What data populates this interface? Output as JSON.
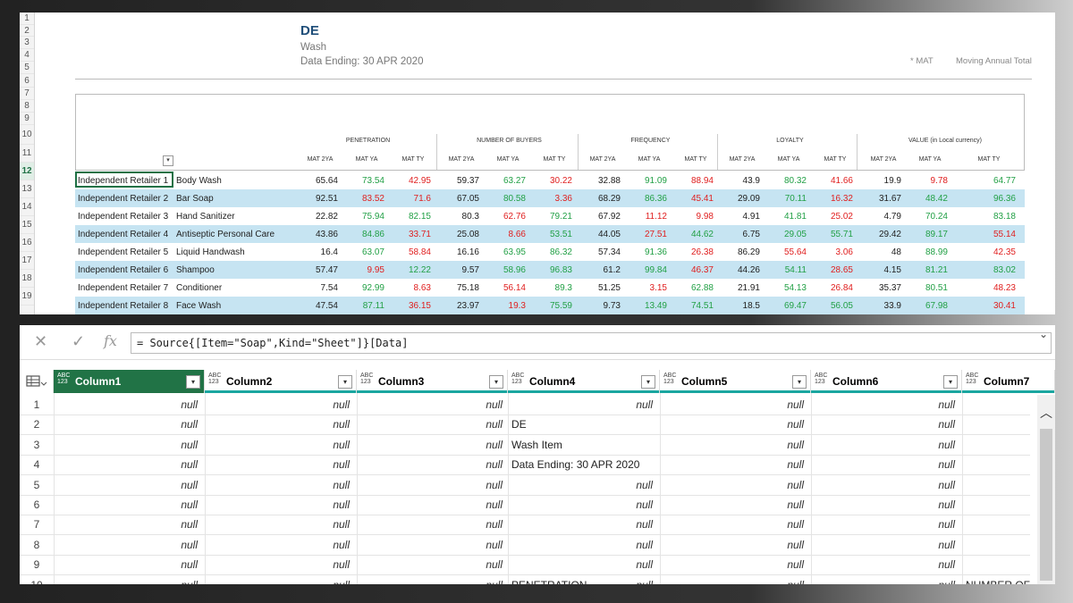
{
  "excel": {
    "title": "DE",
    "subtitle": "Wash",
    "data_ending": "Data Ending: 30 APR 2020",
    "mat_note": "* MAT",
    "mat_note_full": "Moving Annual Total",
    "row_numbers": [
      "1",
      "2",
      "3",
      "4",
      "5",
      "6",
      "7",
      "8",
      "9",
      "10",
      "11",
      "12",
      "13",
      "14",
      "15",
      "16",
      "17",
      "18",
      "19"
    ],
    "metrics": [
      "PENETRATION",
      "NUMBER OF BUYERS",
      "FREQUENCY",
      "LOYALTY",
      "VALUE (in Local currency)"
    ],
    "sub_headers": [
      "MAT 2YA",
      "MAT YA",
      "MAT TY"
    ],
    "rows": [
      {
        "retailer": "Independent Retailer 1",
        "product": "Body Wash",
        "values": [
          "65.64",
          "73.54",
          "42.95",
          "59.37",
          "63.27",
          "30.22",
          "32.88",
          "91.09",
          "88.94",
          "43.9",
          "80.32",
          "41.66",
          "19.9",
          "9.78",
          "64.77"
        ],
        "colors": [
          "k",
          "g",
          "r",
          "k",
          "g",
          "r",
          "k",
          "g",
          "r",
          "k",
          "g",
          "r",
          "k",
          "r",
          "g"
        ]
      },
      {
        "retailer": "Independent Retailer 2",
        "product": "Bar Soap",
        "values": [
          "92.51",
          "83.52",
          "71.6",
          "67.05",
          "80.58",
          "3.36",
          "68.29",
          "86.36",
          "45.41",
          "29.09",
          "70.11",
          "16.32",
          "31.67",
          "48.42",
          "96.36"
        ],
        "colors": [
          "k",
          "r",
          "r",
          "k",
          "g",
          "r",
          "k",
          "g",
          "r",
          "k",
          "g",
          "r",
          "k",
          "g",
          "g"
        ]
      },
      {
        "retailer": "Independent Retailer 3",
        "product": "Hand Sanitizer",
        "values": [
          "22.82",
          "75.94",
          "82.15",
          "80.3",
          "62.76",
          "79.21",
          "67.92",
          "11.12",
          "9.98",
          "4.91",
          "41.81",
          "25.02",
          "4.79",
          "70.24",
          "83.18"
        ],
        "colors": [
          "k",
          "g",
          "g",
          "k",
          "r",
          "g",
          "k",
          "r",
          "r",
          "k",
          "g",
          "r",
          "k",
          "g",
          "g"
        ]
      },
      {
        "retailer": "Independent Retailer 4",
        "product": "Antiseptic Personal Care",
        "values": [
          "43.86",
          "84.86",
          "33.71",
          "25.08",
          "8.66",
          "53.51",
          "44.05",
          "27.51",
          "44.62",
          "6.75",
          "29.05",
          "55.71",
          "29.42",
          "89.17",
          "55.14"
        ],
        "colors": [
          "k",
          "g",
          "r",
          "k",
          "r",
          "g",
          "k",
          "r",
          "g",
          "k",
          "g",
          "g",
          "k",
          "g",
          "r"
        ]
      },
      {
        "retailer": "Independent Retailer 5",
        "product": "Liquid Handwash",
        "values": [
          "16.4",
          "63.07",
          "58.84",
          "16.16",
          "63.95",
          "86.32",
          "57.34",
          "91.36",
          "26.38",
          "86.29",
          "55.64",
          "3.06",
          "48",
          "88.99",
          "42.35"
        ],
        "colors": [
          "k",
          "g",
          "r",
          "k",
          "g",
          "g",
          "k",
          "g",
          "r",
          "k",
          "r",
          "r",
          "k",
          "g",
          "r"
        ]
      },
      {
        "retailer": "Independent Retailer 6",
        "product": "Shampoo",
        "values": [
          "57.47",
          "9.95",
          "12.22",
          "9.57",
          "58.96",
          "96.83",
          "61.2",
          "99.84",
          "46.37",
          "44.26",
          "54.11",
          "28.65",
          "4.15",
          "81.21",
          "83.02"
        ],
        "colors": [
          "k",
          "r",
          "g",
          "k",
          "g",
          "g",
          "k",
          "g",
          "r",
          "k",
          "g",
          "r",
          "k",
          "g",
          "g"
        ]
      },
      {
        "retailer": "Independent Retailer 7",
        "product": "Conditioner",
        "values": [
          "7.54",
          "92.99",
          "8.63",
          "75.18",
          "56.14",
          "89.3",
          "51.25",
          "3.15",
          "62.88",
          "21.91",
          "54.13",
          "26.84",
          "35.37",
          "80.51",
          "48.23"
        ],
        "colors": [
          "k",
          "g",
          "r",
          "k",
          "r",
          "g",
          "k",
          "r",
          "g",
          "k",
          "g",
          "r",
          "k",
          "g",
          "r"
        ]
      },
      {
        "retailer": "Independent Retailer 8",
        "product": "Face Wash",
        "values": [
          "47.54",
          "87.11",
          "36.15",
          "23.97",
          "19.3",
          "75.59",
          "9.73",
          "13.49",
          "74.51",
          "18.5",
          "69.47",
          "56.05",
          "33.9",
          "67.98",
          "30.41"
        ],
        "colors": [
          "k",
          "g",
          "r",
          "k",
          "r",
          "g",
          "k",
          "g",
          "g",
          "k",
          "g",
          "g",
          "k",
          "g",
          "r"
        ]
      }
    ]
  },
  "query": {
    "formula": "= Source{[Item=\"Soap\",Kind=\"Sheet\"]}[Data]",
    "fx_label": "fx",
    "type_label": "ABC\n123",
    "columns": [
      "Column1",
      "Column2",
      "Column3",
      "Column4",
      "Column5",
      "Column6",
      "Column7"
    ],
    "null_text": "null",
    "rows": [
      {
        "idx": "1",
        "cells": [
          "null",
          "null",
          "null",
          "",
          "null",
          "null",
          "null",
          ""
        ]
      },
      {
        "idx": "2",
        "cells": [
          "null",
          "null",
          "null",
          "DE",
          "",
          "null",
          "null",
          ""
        ]
      },
      {
        "idx": "3",
        "cells": [
          "null",
          "null",
          "null",
          "Wash Item",
          "",
          "null",
          "null",
          ""
        ]
      },
      {
        "idx": "4",
        "cells": [
          "null",
          "null",
          "null",
          "Data Ending: 30 APR 2020",
          "",
          "null",
          "null",
          ""
        ]
      },
      {
        "idx": "5",
        "cells": [
          "null",
          "null",
          "null",
          "",
          "null",
          "null",
          "null",
          ""
        ]
      },
      {
        "idx": "6",
        "cells": [
          "null",
          "null",
          "null",
          "",
          "null",
          "null",
          "null",
          ""
        ]
      },
      {
        "idx": "7",
        "cells": [
          "null",
          "null",
          "null",
          "",
          "null",
          "null",
          "null",
          ""
        ]
      },
      {
        "idx": "8",
        "cells": [
          "null",
          "null",
          "null",
          "",
          "null",
          "null",
          "null",
          ""
        ]
      },
      {
        "idx": "9",
        "cells": [
          "null",
          "null",
          "null",
          "",
          "null",
          "null",
          "null",
          ""
        ]
      },
      {
        "idx": "10",
        "cells": [
          "null",
          "null",
          "null",
          "PENETRATION",
          "null",
          "null",
          "null",
          "NUMBER OF"
        ]
      }
    ]
  }
}
